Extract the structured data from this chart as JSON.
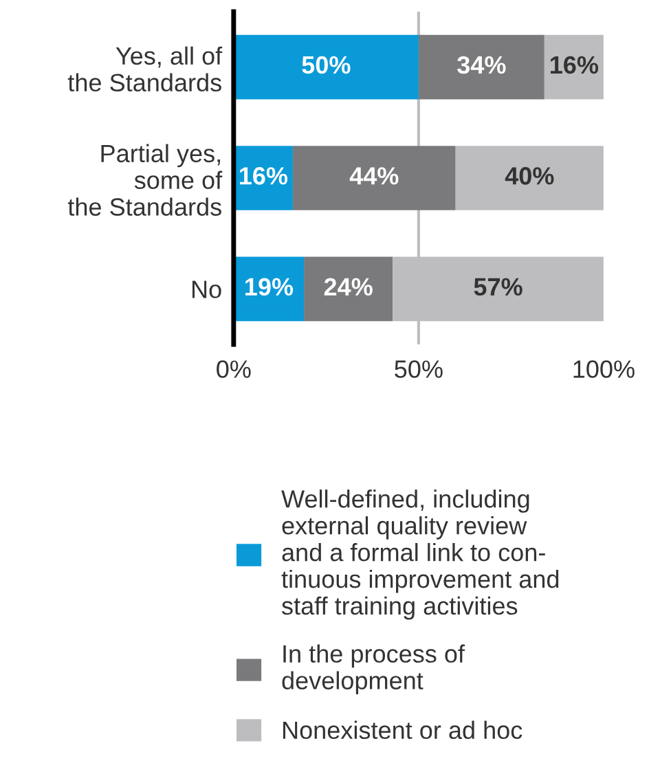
{
  "chart_data": {
    "type": "bar",
    "orientation": "horizontal",
    "stacked": true,
    "categories": [
      "Yes, all of\nthe Standards",
      "Partial yes,\nsome of\nthe Standards",
      "No"
    ],
    "series": [
      {
        "name": "Well-defined, including\nexternal quality review\nand a formal link to con-\ntinuous improvement and\nstaff training activities",
        "color": "#0a9ad8",
        "values": [
          50,
          16,
          19
        ],
        "value_labels": [
          "50%",
          "16%",
          "19%"
        ]
      },
      {
        "name": "In the process of\ndevelopment",
        "color": "#7a7a7c",
        "values": [
          34,
          44,
          24
        ],
        "value_labels": [
          "34%",
          "44%",
          "24%"
        ]
      },
      {
        "name": "Nonexistent or ad hoc",
        "color": "#bdbdbf",
        "values": [
          16,
          40,
          57
        ],
        "value_labels": [
          "16%",
          "40%",
          "57%"
        ]
      }
    ],
    "xlim": [
      0,
      100
    ],
    "xticks": [
      {
        "value": 0,
        "label": "0%"
      },
      {
        "value": 50,
        "label": "50%"
      },
      {
        "value": 100,
        "label": "100%"
      }
    ],
    "ref_lines": [
      {
        "axis": "x",
        "value": 50,
        "color": "#bdbdbf"
      }
    ],
    "grid": false,
    "legend": "bottom"
  }
}
